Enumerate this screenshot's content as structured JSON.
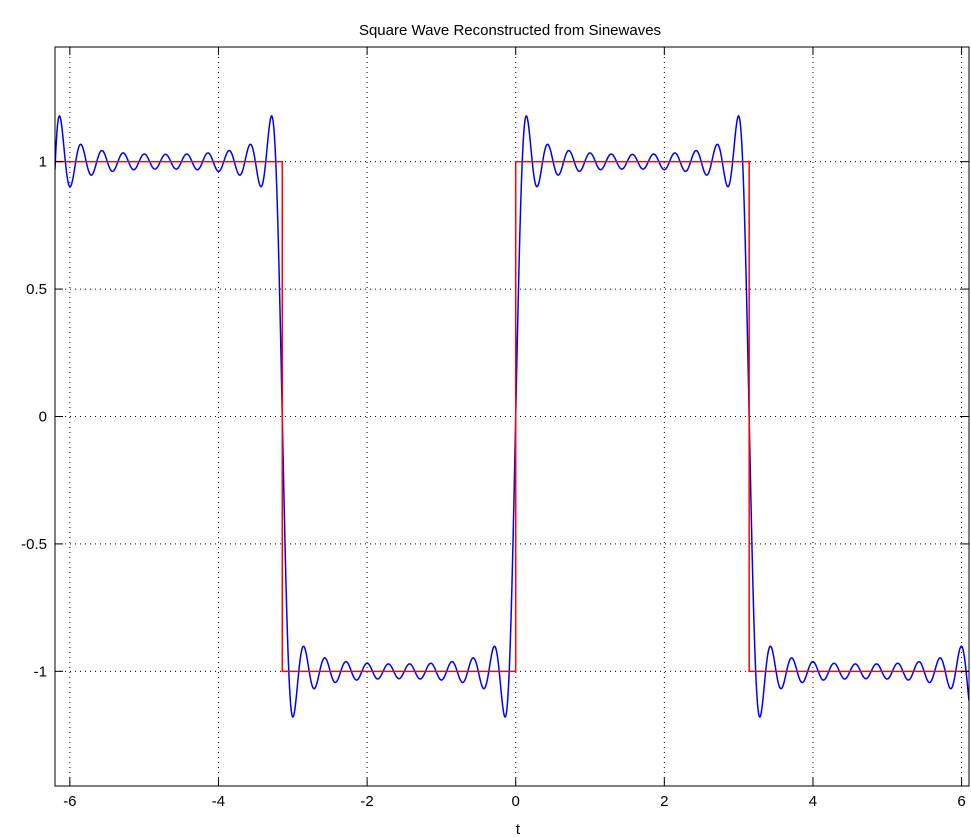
{
  "chart_data": {
    "type": "line",
    "title": "Square Wave Reconstructed from Sinewaves",
    "xlabel": "t",
    "ylabel": "",
    "xlim": [
      -6.2,
      6.1
    ],
    "ylim": [
      -1.45,
      1.45
    ],
    "xticks": [
      -6,
      -4,
      -2,
      0,
      2,
      4,
      6
    ],
    "yticks": [
      -1,
      -0.5,
      0,
      0.5,
      1
    ],
    "grid": true,
    "series": [
      {
        "kind": "fourier-partial-sum",
        "t_range": [
          -6.2,
          6.1
        ],
        "harmonics": [
          1,
          3,
          5,
          7,
          9,
          11,
          13,
          15,
          17,
          19,
          21
        ],
        "color": "#0000ff"
      },
      {
        "kind": "square-wave",
        "t_range": [
          -6.2,
          6.1
        ],
        "points": [
          [
            -6.2,
            1
          ],
          [
            -3.1416,
            1
          ],
          [
            -3.1416,
            -1
          ],
          [
            0,
            -1
          ],
          [
            0,
            1
          ],
          [
            3.1416,
            1
          ],
          [
            3.1416,
            -1
          ],
          [
            6.1,
            -1
          ]
        ],
        "color": "#ff0000"
      }
    ]
  },
  "colors": {
    "background": "#ffffff",
    "axes": "#000000",
    "grid": "#000000"
  }
}
